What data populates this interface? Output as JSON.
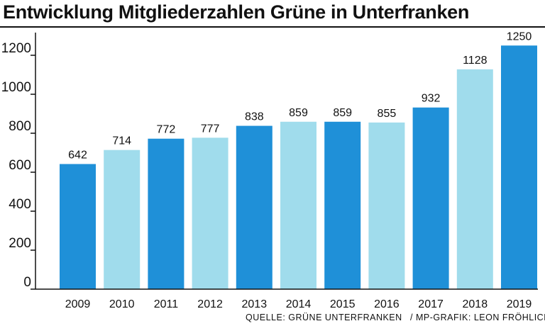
{
  "title": "Entwicklung Mitgliederzahlen Grüne in Unterfranken",
  "footer": {
    "source": "QUELLE: GRÜNE UNTERFRANKEN",
    "credit": "/ MP-GRAFIK: LEON FRÖHLICH"
  },
  "colors": {
    "dark_bar": "#1f90d8",
    "light_bar": "#a0dcec",
    "axis": "#111111"
  },
  "chart_data": {
    "type": "bar",
    "categories": [
      "2009",
      "2010",
      "2011",
      "2012",
      "2013",
      "2014",
      "2015",
      "2016",
      "2017",
      "2018",
      "2019"
    ],
    "values": [
      642,
      714,
      772,
      777,
      838,
      859,
      859,
      855,
      932,
      1128,
      1250
    ],
    "value_labels": [
      "642",
      "714",
      "772",
      "777",
      "838",
      "859",
      "859",
      "855",
      "932",
      "1128",
      "1250"
    ],
    "bar_colors": [
      "dark",
      "light",
      "dark",
      "light",
      "dark",
      "light",
      "dark",
      "light",
      "dark",
      "light",
      "dark"
    ],
    "title": "Entwicklung Mitgliederzahlen Grüne in Unterfranken",
    "xlabel": "",
    "ylabel": "",
    "ylim": [
      0,
      1200
    ],
    "yticks": [
      0,
      200,
      400,
      600,
      800,
      1000,
      1200
    ],
    "grid": false,
    "legend": "none"
  }
}
